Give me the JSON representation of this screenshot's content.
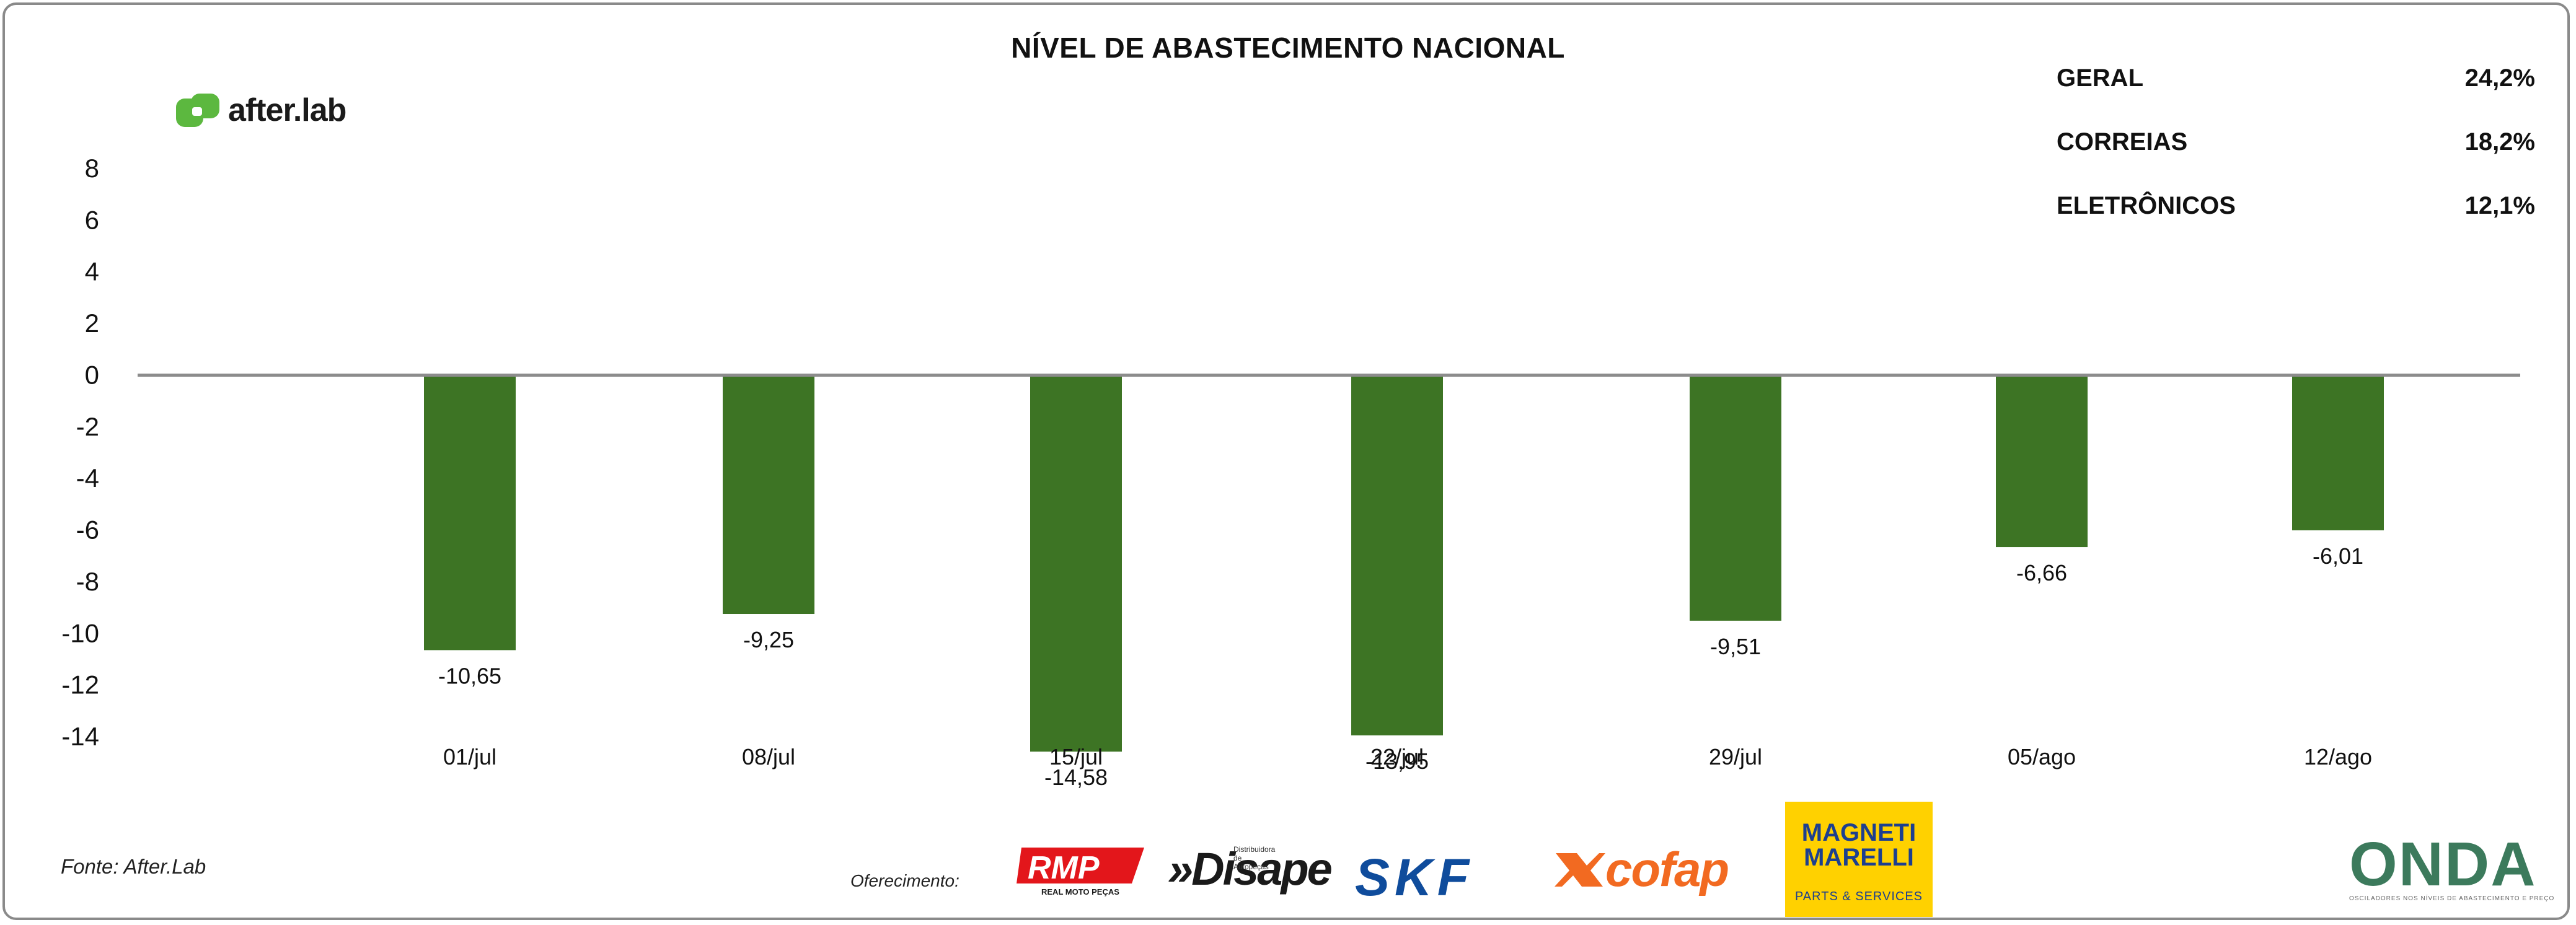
{
  "chart_data": {
    "type": "bar",
    "title": "NÍVEL DE ABASTECIMENTO NACIONAL",
    "categories": [
      "01/jul",
      "08/jul",
      "15/jul",
      "22/jul",
      "29/jul",
      "05/ago",
      "12/ago"
    ],
    "values": [
      -10.65,
      -9.25,
      -14.58,
      -13.95,
      -9.51,
      -6.66,
      -6.01
    ],
    "value_labels": [
      "-10,65",
      "-9,25",
      "-14,58",
      "-13,95",
      "-9,51",
      "-6,66",
      "-6,01"
    ],
    "yticks": [
      "8",
      "6",
      "4",
      "2",
      "0",
      "-2",
      "-4",
      "-6",
      "-8",
      "-10",
      "-12",
      "-14"
    ],
    "ylim": [
      -14,
      8
    ],
    "xlabel": "",
    "ylabel": "",
    "grid": false,
    "legend": "none"
  },
  "brand": {
    "name": "after.lab"
  },
  "stats": [
    {
      "label": "GERAL",
      "value": "24,2%"
    },
    {
      "label": "CORREIAS",
      "value": "18,2%"
    },
    {
      "label": "ELETRÔNICOS",
      "value": "12,1%"
    }
  ],
  "source": "Fonte: After.Lab",
  "sponsor_label": "Oferecimento:",
  "sponsors": {
    "rmp": "RMP",
    "rmp_sub": "REAL MOTO PEÇAS",
    "disape": "»Disape",
    "disape_sub": "Distribuidora de Autopeças",
    "skf": "SKF",
    "cofap": "cofap",
    "magneti_line1": "MAGNETI",
    "magneti_line2": "MARELLI",
    "magneti_sub": "PARTS & SERVICES"
  },
  "onda": {
    "name": "ONDA",
    "sub": "OSCILADORES NOS NÍVEIS DE ABASTECIMENTO E PREÇO"
  },
  "colors": {
    "bar": "#3d7424",
    "axis": "#8c8c8c",
    "brand_green": "#5cb83f",
    "magneti_yellow": "#ffd100"
  }
}
